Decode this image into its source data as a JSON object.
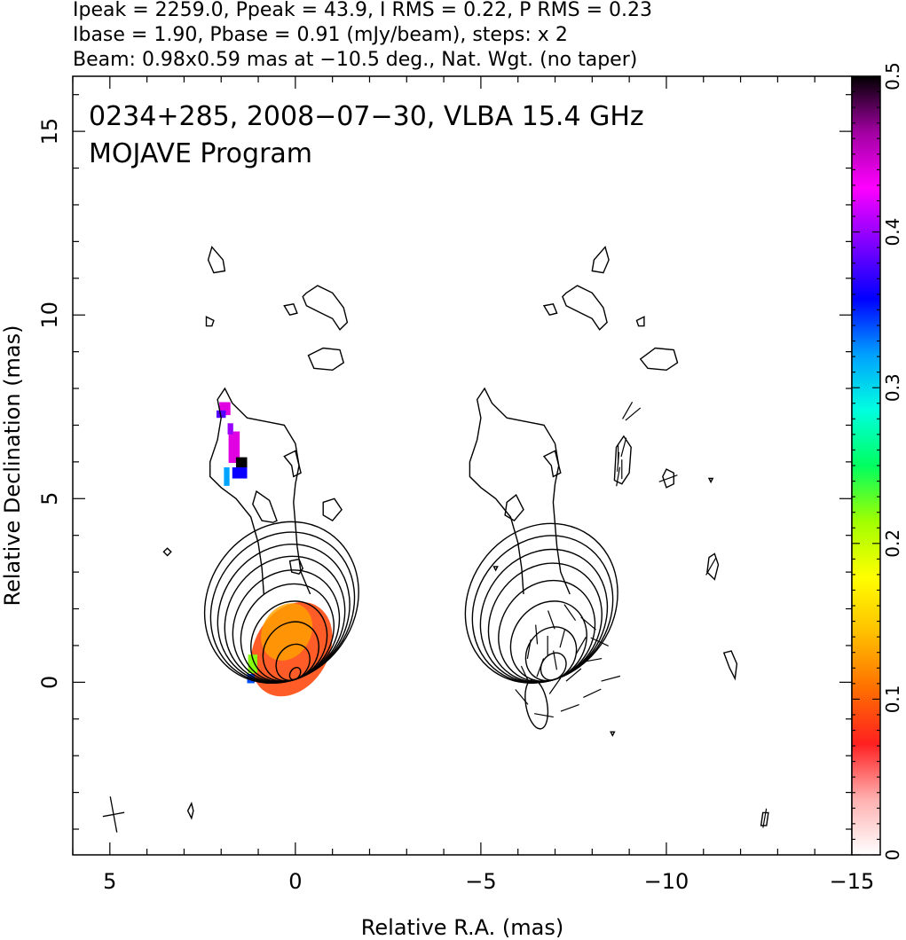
{
  "header_lines": [
    "Ipeak = 2259.0, Ppeak = 43.9, I RMS = 0.22, P RMS = 0.23",
    "Ibase = 1.90, Pbase = 0.91 (mJy/beam), steps: x 2",
    "Beam: 0.98x0.59 mas at −10.5 deg., Nat. Wgt. (no taper)"
  ],
  "chart_data": {
    "type": "heatmap",
    "title_lines": [
      "0234+285, 2008−07−30, VLBA 15.4 GHz",
      "MOJAVE Program"
    ],
    "xlabel": "Relative R.A. (mas)",
    "ylabel": "Relative Declination (mas)",
    "xlim": [
      6,
      -15
    ],
    "ylim": [
      -4.7,
      16.5
    ],
    "x_ticks": [
      5,
      0,
      -5,
      -10,
      -15
    ],
    "x_tick_labels": [
      "5",
      "0",
      "−5",
      "−10",
      "−15"
    ],
    "y_ticks": [
      0,
      5,
      10,
      15
    ],
    "y_tick_labels": [
      "0",
      "5",
      "10",
      "15"
    ],
    "colorbar": {
      "range": [
        0,
        0.5
      ],
      "ticks": [
        0,
        0.1,
        0.2,
        0.3,
        0.4,
        0.5
      ],
      "tick_labels": [
        "0",
        "0.1",
        "0.2",
        "0.3",
        "0.4",
        "0.5"
      ],
      "colors": [
        "#ffffff",
        "#ffb0b0",
        "#ff2020",
        "#ff7000",
        "#ffc000",
        "#ffff00",
        "#a0ff00",
        "#00ff60",
        "#00ffe0",
        "#00a0ff",
        "#0000ff",
        "#8000ff",
        "#ff00ff",
        "#a000a0",
        "#000000"
      ]
    },
    "beam": {
      "major_mas": 0.98,
      "minor_mas": 0.59,
      "pa_deg": -10.5,
      "center": [
        4.9,
        -3.6
      ]
    },
    "core": {
      "peak_x": 0.0,
      "peak_y": 0.2,
      "ra_major_sigma": 0.95,
      "dec_sigma": 1.3,
      "tilt_deg": 35
    },
    "left_contour_levels": [
      0.985,
      0.85,
      0.72,
      0.6,
      0.5,
      0.42,
      0.34,
      0.27,
      0.2,
      0.14
    ],
    "right_contour_levels": [
      0.9,
      0.75,
      0.6,
      0.48,
      0.38,
      0.3,
      0.22,
      0.15
    ],
    "right_panel_offset_ra": -7.0,
    "jet_outline": [
      [
        -0.4,
        2.4
      ],
      [
        -0.15,
        3.0
      ],
      [
        -0.05,
        3.7
      ],
      [
        0.0,
        4.3
      ],
      [
        0.05,
        4.9
      ],
      [
        0.0,
        5.4
      ],
      [
        -0.1,
        5.9
      ],
      [
        0.0,
        6.5
      ],
      [
        0.3,
        7.0
      ],
      [
        0.8,
        7.1
      ],
      [
        1.3,
        7.2
      ],
      [
        1.7,
        7.6
      ],
      [
        1.9,
        8.0
      ],
      [
        2.1,
        7.7
      ],
      [
        2.0,
        7.2
      ],
      [
        2.1,
        6.6
      ],
      [
        2.3,
        6.0
      ],
      [
        2.3,
        5.6
      ],
      [
        2.0,
        5.3
      ],
      [
        1.6,
        5.0
      ],
      [
        1.2,
        4.5
      ],
      [
        1.0,
        3.8
      ],
      [
        0.9,
        3.1
      ],
      [
        0.85,
        2.4
      ]
    ],
    "islands": [
      [
        [
          -0.35,
          8.9
        ],
        [
          -0.75,
          9.1
        ],
        [
          -1.2,
          9.05
        ],
        [
          -1.3,
          8.7
        ],
        [
          -1.0,
          8.5
        ],
        [
          -0.5,
          8.55
        ],
        [
          -0.35,
          8.9
        ]
      ],
      [
        [
          -0.3,
          10.6
        ],
        [
          -0.6,
          10.8
        ],
        [
          -1.0,
          10.6
        ],
        [
          -1.3,
          10.2
        ],
        [
          -1.4,
          9.8
        ],
        [
          -1.2,
          9.6
        ],
        [
          -1.0,
          9.9
        ],
        [
          -0.7,
          10.05
        ],
        [
          -0.3,
          10.25
        ],
        [
          -0.2,
          10.5
        ],
        [
          -0.3,
          10.6
        ]
      ],
      [
        [
          1.95,
          11.5
        ],
        [
          2.25,
          11.85
        ],
        [
          2.35,
          11.5
        ],
        [
          2.2,
          11.15
        ],
        [
          1.9,
          11.2
        ],
        [
          1.95,
          11.5
        ]
      ],
      [
        [
          0.15,
          10.0
        ],
        [
          0.3,
          10.25
        ],
        [
          0.05,
          10.3
        ],
        [
          -0.05,
          10.05
        ],
        [
          0.15,
          10.0
        ]
      ],
      [
        [
          2.2,
          9.85
        ],
        [
          2.4,
          9.95
        ],
        [
          2.4,
          9.7
        ],
        [
          2.25,
          9.7
        ],
        [
          2.2,
          9.85
        ]
      ],
      [
        [
          0.1,
          5.9
        ],
        [
          0.3,
          6.15
        ],
        [
          0.0,
          6.3
        ],
        [
          -0.15,
          5.7
        ],
        [
          0.05,
          5.6
        ],
        [
          0.1,
          5.9
        ]
      ],
      [
        [
          0.5,
          4.4
        ],
        [
          0.7,
          4.95
        ],
        [
          1.05,
          5.2
        ],
        [
          1.15,
          4.85
        ],
        [
          0.9,
          4.4
        ],
        [
          0.6,
          4.35
        ],
        [
          0.5,
          4.4
        ]
      ],
      [
        [
          -0.2,
          3.1
        ],
        [
          -0.1,
          3.35
        ],
        [
          0.15,
          3.3
        ],
        [
          0.1,
          3.0
        ],
        [
          -0.1,
          2.95
        ],
        [
          -0.2,
          3.1
        ]
      ],
      [
        [
          -1.0,
          4.4
        ],
        [
          -1.25,
          4.7
        ],
        [
          -1.05,
          5.0
        ],
        [
          -0.75,
          4.9
        ],
        [
          -0.75,
          4.55
        ],
        [
          -1.0,
          4.4
        ]
      ],
      [
        [
          3.35,
          3.55
        ],
        [
          3.45,
          3.65
        ],
        [
          3.55,
          3.55
        ],
        [
          3.45,
          3.45
        ],
        [
          3.35,
          3.55
        ]
      ],
      [
        [
          2.75,
          -3.5
        ],
        [
          2.8,
          -3.3
        ],
        [
          2.9,
          -3.5
        ],
        [
          2.8,
          -3.7
        ],
        [
          2.75,
          -3.5
        ]
      ]
    ],
    "pol_color_pixels": [
      {
        "x": 1.9,
        "y": 7.45,
        "w": 0.3,
        "h": 0.35,
        "value": 0.44
      },
      {
        "x": 2.0,
        "y": 7.3,
        "w": 0.25,
        "h": 0.2,
        "value": 0.38
      },
      {
        "x": 1.65,
        "y": 6.4,
        "w": 0.3,
        "h": 0.85,
        "value": 0.44
      },
      {
        "x": 1.75,
        "y": 6.9,
        "w": 0.15,
        "h": 0.3,
        "value": 0.4
      },
      {
        "x": 1.45,
        "y": 5.95,
        "w": 0.3,
        "h": 0.35,
        "value": 0.5
      },
      {
        "x": 1.5,
        "y": 5.7,
        "w": 0.4,
        "h": 0.3,
        "value": 0.36
      },
      {
        "x": 1.85,
        "y": 5.6,
        "w": 0.15,
        "h": 0.5,
        "value": 0.32
      },
      {
        "x": 1.15,
        "y": 0.5,
        "w": 0.25,
        "h": 0.5,
        "value": 0.22
      },
      {
        "x": 1.2,
        "y": 0.1,
        "w": 0.2,
        "h": 0.25,
        "value": 0.34
      }
    ],
    "pol_region": {
      "center": [
        0.1,
        0.9
      ],
      "a": 1.0,
      "b": 1.35,
      "tilt_deg": 30,
      "value": 0.09,
      "orange_side_value": 0.13
    },
    "evpa_ticks": [
      [
        -8.0,
        -0.3,
        25
      ],
      [
        -7.5,
        0.2,
        40
      ],
      [
        -7.0,
        -0.1,
        55
      ],
      [
        -6.6,
        0.4,
        70
      ],
      [
        -6.3,
        0.9,
        80
      ],
      [
        -6.5,
        1.3,
        95
      ],
      [
        -6.9,
        1.7,
        110
      ],
      [
        -7.4,
        1.9,
        125
      ],
      [
        -7.9,
        1.6,
        140
      ],
      [
        -8.2,
        1.1,
        155
      ],
      [
        -8.0,
        0.6,
        10
      ],
      [
        -7.7,
        1.0,
        60
      ],
      [
        -7.2,
        1.2,
        75
      ],
      [
        -6.8,
        1.0,
        90
      ],
      [
        -7.0,
        0.6,
        100
      ],
      [
        -6.2,
        0.2,
        115
      ],
      [
        -6.1,
        -0.4,
        130
      ],
      [
        -8.5,
        0.1,
        15
      ],
      [
        -7.4,
        -0.7,
        20
      ],
      [
        -6.7,
        -0.9,
        170
      ],
      [
        -8.7,
        6.2,
        90
      ],
      [
        -8.7,
        6.0,
        85
      ],
      [
        -8.8,
        5.8,
        90
      ],
      [
        -8.7,
        5.6,
        80
      ],
      [
        -8.85,
        6.4,
        75
      ],
      [
        -8.95,
        7.4,
        60
      ],
      [
        -9.1,
        7.3,
        40
      ],
      [
        -10.05,
        5.55,
        20
      ],
      [
        -11.2,
        3.15,
        60
      ],
      [
        -12.65,
        -3.7,
        80
      ]
    ],
    "right_islands": [
      [
        [
          -9.3,
          8.8
        ],
        [
          -9.7,
          9.1
        ],
        [
          -10.2,
          9.05
        ],
        [
          -10.3,
          8.7
        ],
        [
          -10.0,
          8.5
        ],
        [
          -9.5,
          8.55
        ],
        [
          -9.3,
          8.8
        ]
      ],
      [
        [
          -7.3,
          10.6
        ],
        [
          -7.6,
          10.8
        ],
        [
          -8.0,
          10.6
        ],
        [
          -8.3,
          10.2
        ],
        [
          -8.4,
          9.8
        ],
        [
          -8.2,
          9.6
        ],
        [
          -8.0,
          9.9
        ],
        [
          -7.7,
          10.05
        ],
        [
          -7.3,
          10.25
        ],
        [
          -7.2,
          10.5
        ],
        [
          -7.3,
          10.6
        ]
      ],
      [
        [
          -8.05,
          11.5
        ],
        [
          -8.35,
          11.85
        ],
        [
          -8.45,
          11.5
        ],
        [
          -8.3,
          11.15
        ],
        [
          -8.0,
          11.2
        ],
        [
          -8.05,
          11.5
        ]
      ],
      [
        [
          -6.85,
          10.0
        ],
        [
          -6.7,
          10.25
        ],
        [
          -6.95,
          10.3
        ],
        [
          -7.05,
          10.05
        ],
        [
          -6.85,
          10.0
        ]
      ],
      [
        [
          -9.2,
          9.85
        ],
        [
          -9.4,
          9.95
        ],
        [
          -9.4,
          9.7
        ],
        [
          -9.25,
          9.7
        ],
        [
          -9.2,
          9.85
        ]
      ],
      [
        [
          -6.9,
          5.9
        ],
        [
          -6.7,
          6.15
        ],
        [
          -7.0,
          6.3
        ],
        [
          -7.15,
          5.7
        ],
        [
          -6.95,
          5.6
        ],
        [
          -6.9,
          5.9
        ]
      ],
      [
        [
          -5.9,
          4.4
        ],
        [
          -6.15,
          4.7
        ],
        [
          -5.95,
          5.1
        ],
        [
          -5.7,
          4.9
        ],
        [
          -5.65,
          4.55
        ],
        [
          -5.9,
          4.4
        ]
      ],
      [
        [
          -8.6,
          5.5
        ],
        [
          -8.65,
          6.4
        ],
        [
          -8.85,
          6.7
        ],
        [
          -9.05,
          6.4
        ],
        [
          -9.0,
          5.7
        ],
        [
          -8.8,
          5.4
        ],
        [
          -8.6,
          5.5
        ]
      ],
      [
        [
          -9.9,
          5.6
        ],
        [
          -10.0,
          5.8
        ],
        [
          -10.2,
          5.7
        ],
        [
          -10.2,
          5.4
        ],
        [
          -10.0,
          5.3
        ],
        [
          -9.9,
          5.6
        ]
      ],
      [
        [
          -11.1,
          3.0
        ],
        [
          -11.15,
          3.4
        ],
        [
          -11.3,
          3.5
        ],
        [
          -11.4,
          3.2
        ],
        [
          -11.3,
          2.8
        ],
        [
          -11.1,
          3.0
        ]
      ],
      [
        [
          -11.7,
          0.4
        ],
        [
          -11.55,
          0.8
        ],
        [
          -11.75,
          0.85
        ],
        [
          -11.9,
          0.5
        ],
        [
          -11.85,
          0.1
        ],
        [
          -11.7,
          0.4
        ]
      ],
      [
        [
          -12.6,
          -3.55
        ],
        [
          -12.55,
          -3.9
        ],
        [
          -12.7,
          -3.9
        ],
        [
          -12.75,
          -3.55
        ],
        [
          -12.6,
          -3.55
        ]
      ],
      [
        [
          -8.55,
          -1.45
        ],
        [
          -8.6,
          -1.35
        ],
        [
          -8.5,
          -1.35
        ],
        [
          -8.55,
          -1.45
        ]
      ],
      [
        [
          -11.2,
          5.45
        ],
        [
          -11.25,
          5.55
        ],
        [
          -11.15,
          5.55
        ],
        [
          -11.2,
          5.45
        ]
      ],
      [
        [
          -5.4,
          3.05
        ],
        [
          -5.45,
          3.15
        ],
        [
          -5.35,
          3.15
        ],
        [
          -5.4,
          3.05
        ]
      ]
    ]
  }
}
